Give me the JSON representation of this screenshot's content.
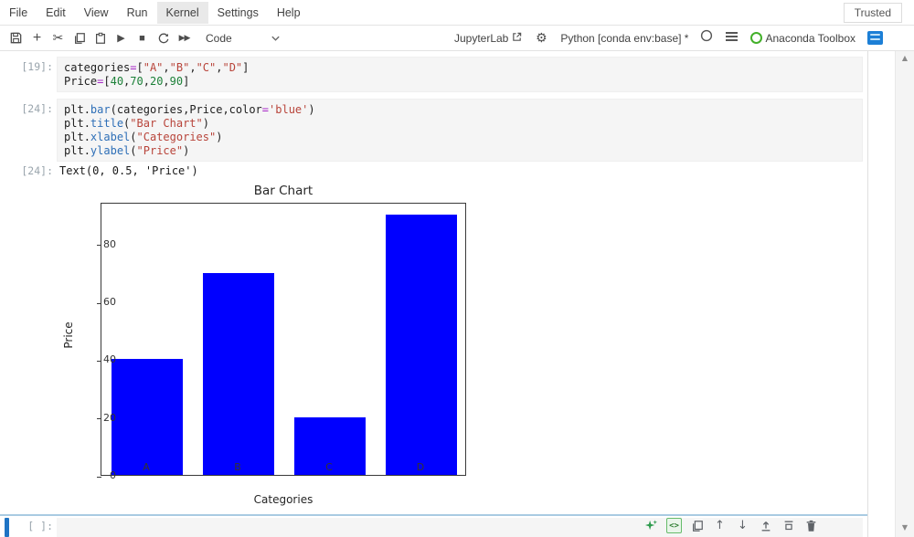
{
  "menu": {
    "items": [
      "File",
      "Edit",
      "View",
      "Run",
      "Kernel",
      "Settings",
      "Help"
    ],
    "active": "Kernel",
    "trusted": "Trusted"
  },
  "toolbar": {
    "cell_type_value": "Code",
    "jupyterlab_label": "JupyterLab",
    "kernel_name": "Python [conda env:base] *",
    "anaconda_label": "Anaconda Toolbox"
  },
  "notebook": {
    "cells": [
      {
        "prompt": "[19]:",
        "lines": [
          [
            [
              "categories",
              "pl"
            ],
            [
              "=",
              "op"
            ],
            [
              "[",
              "pl"
            ],
            [
              "\"A\"",
              "st"
            ],
            [
              ",",
              "pl"
            ],
            [
              "\"B\"",
              "st"
            ],
            [
              ",",
              "pl"
            ],
            [
              "\"C\"",
              "st"
            ],
            [
              ",",
              "pl"
            ],
            [
              "\"D\"",
              "st"
            ],
            [
              "]",
              "pl"
            ]
          ],
          [
            [
              "Price",
              "pl"
            ],
            [
              "=",
              "op"
            ],
            [
              "[",
              "pl"
            ],
            [
              "40",
              "nu"
            ],
            [
              ",",
              "pl"
            ],
            [
              "70",
              "nu"
            ],
            [
              ",",
              "pl"
            ],
            [
              "20",
              "nu"
            ],
            [
              ",",
              "pl"
            ],
            [
              "90",
              "nu"
            ],
            [
              "]",
              "pl"
            ]
          ]
        ]
      },
      {
        "prompt": "[24]:",
        "lines": [
          [
            [
              "plt",
              "pl"
            ],
            [
              ".",
              "pl"
            ],
            [
              "bar",
              "fn"
            ],
            [
              "(",
              "pl"
            ],
            [
              "categories,Price,color",
              "pl"
            ],
            [
              "=",
              "op"
            ],
            [
              "'blue'",
              "st"
            ],
            [
              ")",
              "pl"
            ]
          ],
          [
            [
              "plt",
              "pl"
            ],
            [
              ".",
              "pl"
            ],
            [
              "title",
              "fn"
            ],
            [
              "(",
              "pl"
            ],
            [
              "\"Bar Chart\"",
              "st"
            ],
            [
              ")",
              "pl"
            ]
          ],
          [
            [
              "plt",
              "pl"
            ],
            [
              ".",
              "pl"
            ],
            [
              "xlabel",
              "fn"
            ],
            [
              "(",
              "pl"
            ],
            [
              "\"Categories\"",
              "st"
            ],
            [
              ")",
              "pl"
            ]
          ],
          [
            [
              "plt",
              "pl"
            ],
            [
              ".",
              "pl"
            ],
            [
              "ylabel",
              "fn"
            ],
            [
              "(",
              "pl"
            ],
            [
              "\"Price\"",
              "st"
            ],
            [
              ")",
              "pl"
            ]
          ]
        ]
      }
    ],
    "output": {
      "prompt": "[24]:",
      "text": "Text(0, 0.5, 'Price')"
    },
    "new_cell_prompt": "[ ]:"
  },
  "chart_data": {
    "type": "bar",
    "categories": [
      "A",
      "B",
      "C",
      "D"
    ],
    "values": [
      40,
      70,
      20,
      90
    ],
    "title": "Bar Chart",
    "xlabel": "Categories",
    "ylabel": "Price",
    "yticks": [
      0,
      20,
      40,
      60,
      80
    ],
    "ylim": [
      0,
      94.5
    ],
    "bar_color": "#0000ff",
    "grid": false,
    "legend_position": "none"
  },
  "colors": {
    "accent_blue": "#1c7fd6",
    "anaconda_green": "#43b02a",
    "bar_blue": "#0000ff",
    "active_cell_stripe": "#1f74c4"
  }
}
